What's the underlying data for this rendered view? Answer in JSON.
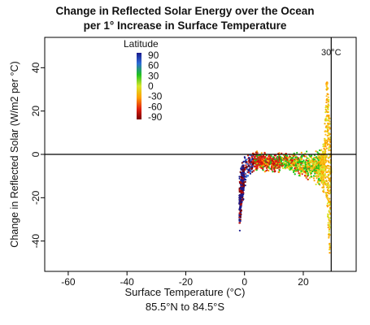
{
  "chart_data": {
    "type": "scatter",
    "title": "Change in Reflected Solar Energy over the Ocean",
    "subtitle": "per 1° Increase in Surface Temperature",
    "xlabel": "Surface Temperature (°C)",
    "ylabel": "Change in Reflected Solar (W/m2 per °C)",
    "footnote": "85.5°N to 84.5°S",
    "xlim": [
      -68,
      38
    ],
    "ylim": [
      -54,
      54
    ],
    "xticks": [
      -60,
      -40,
      -20,
      0,
      20
    ],
    "xtick_labels": [
      "-60",
      "-40",
      "-20",
      "0",
      "20"
    ],
    "yticks": [
      -40,
      -20,
      0,
      20,
      40
    ],
    "ytick_labels": [
      "-40",
      "-20",
      "0",
      "20",
      "40"
    ],
    "reference_lines": {
      "horizontal_y": 0,
      "vertical_x": 29.5,
      "vertical_label": "30°C"
    },
    "legend": {
      "title": "Latitude",
      "labels": [
        "90",
        "60",
        "30",
        "0",
        "-30",
        "-60",
        "-90"
      ],
      "position": "top-left",
      "gradient_colors": [
        "#1a1a8c",
        "#2d6bd6",
        "#1fc21f",
        "#d8e62a",
        "#ffa000",
        "#e02010",
        "#7a0000"
      ]
    },
    "series_envelope": {
      "description_free": "",
      "x": [
        -1.8,
        -1,
        0,
        2,
        5,
        10,
        15,
        20,
        24,
        26,
        27,
        28,
        29,
        29.5
      ],
      "y_upper": [
        -6,
        -2,
        1,
        2,
        2,
        2,
        2,
        2,
        3,
        4,
        8,
        38,
        20,
        0
      ],
      "y_lower": [
        -44,
        -30,
        -18,
        -10,
        -8,
        -10,
        -8,
        -12,
        -14,
        -16,
        -20,
        -20,
        -50,
        -10
      ]
    }
  }
}
